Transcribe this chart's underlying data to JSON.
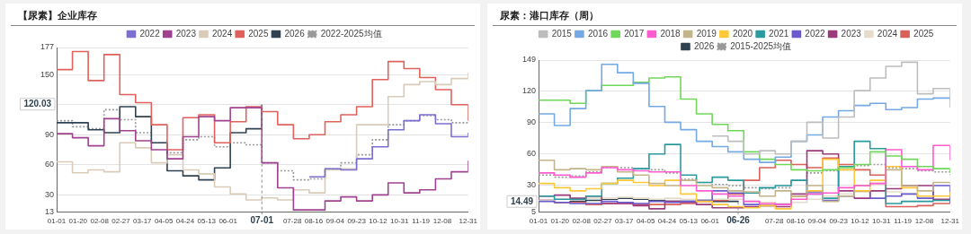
{
  "chart_data": [
    {
      "type": "step",
      "title": "【尿素】企业库存",
      "legend": "top",
      "grid": "y",
      "marker": "none",
      "x": [
        "--01-01",
        "--01-15",
        "--01-29",
        "--02-12",
        "--02-26",
        "--03-11",
        "--03-25",
        "--04-08",
        "--04-22",
        "--05-06",
        "--05-20",
        "--06-03",
        "--06-17",
        "--07-01",
        "--07-15",
        "--07-29",
        "--08-12",
        "--08-26",
        "--09-09",
        "--09-23",
        "--10-07",
        "--10-21",
        "--11-04",
        "--11-18",
        "--12-02",
        "--12-16",
        "--12-31"
      ],
      "xlim": [
        "--01-01",
        "--12-31"
      ],
      "xticks": [
        {
          "value": "--01-01",
          "label": "01-01"
        },
        {
          "value": "--01-20",
          "label": "01-20"
        },
        {
          "value": "--02-08",
          "label": "02-08"
        },
        {
          "value": "--02-27",
          "label": "02-27"
        },
        {
          "value": "--03-17",
          "label": "03-17"
        },
        {
          "value": "--04-05",
          "label": "04-05"
        },
        {
          "value": "--04-24",
          "label": "04-24"
        },
        {
          "value": "--05-13",
          "label": "05-13"
        },
        {
          "value": "--06-01",
          "label": "06-01"
        },
        {
          "value": "--07-28",
          "label": "07-28"
        },
        {
          "value": "--08-16",
          "label": "08-16"
        },
        {
          "value": "--09-04",
          "label": "09-04"
        },
        {
          "value": "--09-23",
          "label": "09-23"
        },
        {
          "value": "--10-12",
          "label": "10-12"
        },
        {
          "value": "--10-31",
          "label": "10-31"
        },
        {
          "value": "--11-19",
          "label": "11-19"
        },
        {
          "value": "--12-08",
          "label": "12-08"
        },
        {
          "value": "--12-31",
          "label": "12-31"
        }
      ],
      "ylim": [
        13,
        177
      ],
      "yticks": [
        13,
        30,
        60,
        90,
        {
          "value": 120,
          "label": null
        },
        150,
        177
      ],
      "series": [
        {
          "name": "2022",
          "color": "#7b6fd0",
          "values": [
            null,
            null,
            null,
            null,
            null,
            null,
            null,
            null,
            null,
            null,
            null,
            null,
            null,
            null,
            null,
            null,
            48,
            56,
            55,
            66,
            78,
            95,
            104,
            110,
            101,
            88,
            92
          ]
        },
        {
          "name": "2023",
          "color": "#a0428f",
          "values": [
            91,
            87,
            79,
            106,
            94,
            84,
            75,
            66,
            88,
            108,
            104,
            117,
            117,
            62,
            37,
            15,
            15,
            24,
            28,
            24,
            30,
            42,
            32,
            35,
            46,
            53,
            64
          ]
        },
        {
          "name": "2024",
          "color": "#d9cbb8",
          "values": [
            63,
            52,
            55,
            53,
            82,
            77,
            62,
            70,
            55,
            51,
            38,
            31,
            25,
            27,
            25,
            35,
            32,
            55,
            56,
            100,
            100,
            128,
            140,
            143,
            140,
            146,
            152
          ]
        },
        {
          "name": "2025",
          "color": "#e0625c",
          "values": [
            155,
            173,
            144,
            170,
            130,
            122,
            100,
            75,
            107,
            110,
            82,
            103,
            118,
            113,
            100,
            86,
            90,
            103,
            110,
            118,
            145,
            163,
            156,
            147,
            135,
            120,
            104
          ]
        },
        {
          "name": "2026",
          "color": "#2e4251",
          "values": [
            102,
            102,
            95,
            92,
            118,
            108,
            82,
            54,
            49,
            45,
            57,
            92,
            96,
            120.03,
            null,
            null,
            null,
            null,
            null,
            null,
            null,
            null,
            null,
            null,
            null,
            null,
            null
          ]
        },
        {
          "name": "2022-2025均值",
          "color": "#999999",
          "line_style": "dotted",
          "values": [
            104,
            98,
            96,
            115,
            105,
            92,
            82,
            72,
            85,
            88,
            78,
            82,
            80,
            62,
            54,
            45,
            46,
            56,
            62,
            70,
            85,
            100,
            104,
            109,
            105,
            102,
            103
          ]
        }
      ],
      "annotations": [
        {
          "text": "120.03",
          "y": 120.03
        },
        {
          "text": "07-01",
          "x": "--07-01",
          "y": 120.03
        }
      ]
    },
    {
      "type": "step",
      "title": "尿素：港口库存（周）",
      "legend": "top",
      "grid": "y",
      "marker": "none",
      "x": [
        "--01-01",
        "--01-15",
        "--01-29",
        "--02-12",
        "--02-26",
        "--03-11",
        "--03-25",
        "--04-08",
        "--04-22",
        "--05-06",
        "--05-20",
        "--06-03",
        "--06-17",
        "--07-01",
        "--07-15",
        "--07-29",
        "--08-12",
        "--08-26",
        "--09-09",
        "--09-23",
        "--10-07",
        "--10-21",
        "--11-04",
        "--11-18",
        "--12-02",
        "--12-16",
        "--12-31"
      ],
      "xlim": [
        "--01-01",
        "--12-31"
      ],
      "xticks": [
        {
          "value": "--01-01",
          "label": "01-01"
        },
        {
          "value": "--01-20",
          "label": "01-20"
        },
        {
          "value": "--02-08",
          "label": "02-08"
        },
        {
          "value": "--02-27",
          "label": "02-27"
        },
        {
          "value": "--03-17",
          "label": "03-17"
        },
        {
          "value": "--04-05",
          "label": "04-05"
        },
        {
          "value": "--04-24",
          "label": "04-24"
        },
        {
          "value": "--05-13",
          "label": "05-13"
        },
        {
          "value": "--06-01",
          "label": "06-01"
        },
        {
          "value": "--07-28",
          "label": "07-28"
        },
        {
          "value": "--08-16",
          "label": "08-16"
        },
        {
          "value": "--09-04",
          "label": "09-04"
        },
        {
          "value": "--09-23",
          "label": "09-23"
        },
        {
          "value": "--10-12",
          "label": "10-12"
        },
        {
          "value": "--10-31",
          "label": "10-31"
        },
        {
          "value": "--11-19",
          "label": "11-19"
        },
        {
          "value": "--12-08",
          "label": "12-08"
        },
        {
          "value": "--12-31",
          "label": "12-31"
        }
      ],
      "ylim": [
        5,
        149
      ],
      "yticks": [
        5,
        30,
        60,
        90,
        120,
        149
      ],
      "series": [
        {
          "name": "2015",
          "color": "#bdbdbd",
          "values": [
            null,
            null,
            null,
            null,
            null,
            null,
            null,
            null,
            null,
            null,
            null,
            77,
            72,
            60,
            63,
            60,
            72,
            90,
            75,
            95,
            120,
            132,
            143,
            147,
            117,
            122,
            104
          ]
        },
        {
          "name": "2016",
          "color": "#74a9e4",
          "values": [
            98,
            87,
            103,
            120,
            145,
            137,
            127,
            105,
            90,
            83,
            72,
            67,
            62,
            55,
            52,
            57,
            72,
            78,
            95,
            101,
            106,
            108,
            102,
            104,
            112,
            113,
            111
          ]
        },
        {
          "name": "2017",
          "color": "#6fd85a",
          "values": [
            111,
            111,
            108,
            120,
            125,
            125,
            128,
            132,
            133,
            112,
            98,
            88,
            82,
            62,
            55,
            50,
            45,
            44,
            45,
            47,
            50,
            62,
            58,
            55,
            48,
            46,
            42
          ]
        },
        {
          "name": "2018",
          "color": "#ff5bd0",
          "values": [
            42,
            40,
            38,
            42,
            47,
            45,
            44,
            43,
            43,
            30,
            25,
            22,
            20,
            15,
            13,
            12,
            17,
            22,
            23,
            28,
            30,
            32,
            64,
            48,
            45,
            68,
            54
          ]
        },
        {
          "name": "2019",
          "color": "#c4b48a",
          "values": [
            54,
            45,
            46,
            45,
            48,
            43,
            40,
            32,
            30,
            35,
            30,
            28,
            25,
            24,
            20,
            25,
            20,
            30,
            15,
            20,
            30,
            32,
            45,
            30,
            25,
            33,
            32
          ]
        },
        {
          "name": "2020",
          "color": "#ffc83a",
          "values": [
            32,
            28,
            25,
            27,
            32,
            35,
            33,
            30,
            35,
            22,
            15,
            12,
            10,
            9,
            11,
            8,
            20,
            25,
            55,
            45,
            25,
            35,
            48,
            28,
            20,
            20,
            24
          ]
        },
        {
          "name": "2021",
          "color": "#2b9a9e",
          "values": [
            20,
            17,
            17,
            20,
            32,
            37,
            46,
            60,
            69,
            40,
            33,
            38,
            35,
            23,
            28,
            30,
            35,
            22,
            18,
            48,
            72,
            65,
            13,
            15,
            15,
            16,
            17
          ]
        },
        {
          "name": "2022",
          "color": "#6a5bcf",
          "values": [
            15,
            14,
            13,
            13,
            15,
            14,
            13,
            15,
            14,
            15,
            16,
            25,
            23,
            12,
            11,
            12,
            20,
            24,
            16,
            20,
            25,
            18,
            20,
            22,
            18,
            30,
            13
          ]
        },
        {
          "name": "2023",
          "color": "#9b3a7d",
          "values": [
            20,
            21,
            18,
            20,
            13,
            13,
            11,
            8,
            15,
            14,
            12,
            9,
            9,
            10,
            11,
            10,
            22,
            63,
            60,
            25,
            18,
            25,
            27,
            30,
            30,
            17,
            18
          ]
        },
        {
          "name": "2024",
          "color": "#e6dccb",
          "values": [
            16,
            17,
            18,
            18,
            18,
            19,
            18,
            17,
            18,
            17,
            16,
            17,
            17,
            15,
            14,
            13,
            14,
            17,
            20,
            22,
            24,
            25,
            24,
            22,
            20,
            16,
            15
          ]
        },
        {
          "name": "2025",
          "color": "#d9615a",
          "values": [
            16,
            14,
            14,
            12,
            13,
            13,
            12,
            12,
            12,
            13,
            15,
            16,
            22,
            35,
            47,
            54,
            50,
            47,
            56,
            50,
            45,
            40,
            10,
            10,
            11,
            13,
            17
          ]
        },
        {
          "name": "2026",
          "color": "#2e4251",
          "x": [
            "--01-01",
            "--01-15",
            "--01-29",
            "--02-12",
            "--02-26",
            "--03-11",
            "--03-25",
            "--04-08",
            "--04-22",
            "--05-06",
            "--05-20",
            "--06-03",
            "--06-17",
            "--06-26"
          ],
          "values": [
            16,
            14,
            15,
            16,
            17,
            18,
            17,
            16,
            15,
            15,
            16,
            15,
            15,
            14.49
          ]
        },
        {
          "name": "2015-2025均值",
          "color": "#999999",
          "line_style": "dotted",
          "values": [
            40,
            38,
            39,
            43,
            47,
            47,
            46,
            45,
            42,
            36,
            33,
            31,
            30,
            28,
            27,
            28,
            35,
            42,
            44,
            45,
            49,
            50,
            47,
            46,
            44,
            43,
            40
          ]
        }
      ],
      "annotations": [
        {
          "text": "14.49",
          "y": 14.49
        },
        {
          "text": "06-26",
          "x": "--06-26",
          "y": 14.49
        }
      ]
    }
  ]
}
